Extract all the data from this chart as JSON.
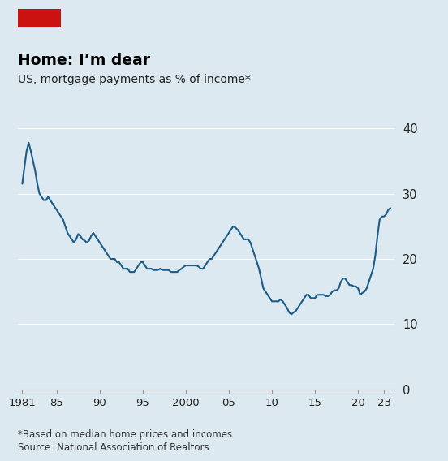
{
  "title": "Home: I’m dear",
  "subtitle": "US, mortgage payments as % of income*",
  "footnote1": "*Based on median home prices and incomes",
  "footnote2": "Source: National Association of Realtors",
  "background_color": "#dce9f0",
  "line_color": "#1b5c8a",
  "title_color": "#000000",
  "subtitle_color": "#222222",
  "footnote_color": "#333333",
  "red_rect_color": "#cc1111",
  "ylim": [
    0,
    42
  ],
  "yticks": [
    0,
    10,
    20,
    30,
    40
  ],
  "xlim": [
    1980.5,
    2024.2
  ],
  "xticks": [
    1981,
    1985,
    1990,
    1995,
    2000,
    2005,
    2010,
    2015,
    2020,
    2023
  ],
  "xticklabels": [
    "1981",
    "85",
    "90",
    "95",
    "2000",
    "05",
    "10",
    "15",
    "20",
    "23"
  ],
  "data": [
    [
      1981.0,
      31.5
    ],
    [
      1981.25,
      34.0
    ],
    [
      1981.5,
      36.5
    ],
    [
      1981.75,
      37.8
    ],
    [
      1982.0,
      36.5
    ],
    [
      1982.25,
      35.0
    ],
    [
      1982.5,
      33.5
    ],
    [
      1982.75,
      31.5
    ],
    [
      1983.0,
      30.0
    ],
    [
      1983.25,
      29.5
    ],
    [
      1983.5,
      29.0
    ],
    [
      1983.75,
      29.0
    ],
    [
      1984.0,
      29.5
    ],
    [
      1984.25,
      29.0
    ],
    [
      1984.5,
      28.5
    ],
    [
      1984.75,
      28.0
    ],
    [
      1985.0,
      27.5
    ],
    [
      1985.25,
      27.0
    ],
    [
      1985.5,
      26.5
    ],
    [
      1985.75,
      26.0
    ],
    [
      1986.0,
      25.0
    ],
    [
      1986.25,
      24.0
    ],
    [
      1986.5,
      23.5
    ],
    [
      1986.75,
      23.0
    ],
    [
      1987.0,
      22.5
    ],
    [
      1987.25,
      23.0
    ],
    [
      1987.5,
      23.8
    ],
    [
      1987.75,
      23.5
    ],
    [
      1988.0,
      23.0
    ],
    [
      1988.25,
      22.8
    ],
    [
      1988.5,
      22.5
    ],
    [
      1988.75,
      22.8
    ],
    [
      1989.0,
      23.5
    ],
    [
      1989.25,
      24.0
    ],
    [
      1989.5,
      23.5
    ],
    [
      1989.75,
      23.0
    ],
    [
      1990.0,
      22.5
    ],
    [
      1990.25,
      22.0
    ],
    [
      1990.5,
      21.5
    ],
    [
      1990.75,
      21.0
    ],
    [
      1991.0,
      20.5
    ],
    [
      1991.25,
      20.0
    ],
    [
      1991.5,
      20.0
    ],
    [
      1991.75,
      20.0
    ],
    [
      1992.0,
      19.5
    ],
    [
      1992.25,
      19.5
    ],
    [
      1992.5,
      19.0
    ],
    [
      1992.75,
      18.5
    ],
    [
      1993.0,
      18.5
    ],
    [
      1993.25,
      18.5
    ],
    [
      1993.5,
      18.0
    ],
    [
      1993.75,
      18.0
    ],
    [
      1994.0,
      18.0
    ],
    [
      1994.25,
      18.5
    ],
    [
      1994.5,
      19.0
    ],
    [
      1994.75,
      19.5
    ],
    [
      1995.0,
      19.5
    ],
    [
      1995.25,
      19.0
    ],
    [
      1995.5,
      18.5
    ],
    [
      1995.75,
      18.5
    ],
    [
      1996.0,
      18.5
    ],
    [
      1996.25,
      18.3
    ],
    [
      1996.5,
      18.3
    ],
    [
      1996.75,
      18.3
    ],
    [
      1997.0,
      18.5
    ],
    [
      1997.25,
      18.3
    ],
    [
      1997.5,
      18.3
    ],
    [
      1997.75,
      18.3
    ],
    [
      1998.0,
      18.3
    ],
    [
      1998.25,
      18.0
    ],
    [
      1998.5,
      18.0
    ],
    [
      1998.75,
      18.0
    ],
    [
      1999.0,
      18.0
    ],
    [
      1999.25,
      18.3
    ],
    [
      1999.5,
      18.5
    ],
    [
      1999.75,
      18.8
    ],
    [
      2000.0,
      19.0
    ],
    [
      2000.25,
      19.0
    ],
    [
      2000.5,
      19.0
    ],
    [
      2000.75,
      19.0
    ],
    [
      2001.0,
      19.0
    ],
    [
      2001.25,
      19.0
    ],
    [
      2001.5,
      18.8
    ],
    [
      2001.75,
      18.5
    ],
    [
      2002.0,
      18.5
    ],
    [
      2002.25,
      19.0
    ],
    [
      2002.5,
      19.5
    ],
    [
      2002.75,
      20.0
    ],
    [
      2003.0,
      20.0
    ],
    [
      2003.25,
      20.5
    ],
    [
      2003.5,
      21.0
    ],
    [
      2003.75,
      21.5
    ],
    [
      2004.0,
      22.0
    ],
    [
      2004.25,
      22.5
    ],
    [
      2004.5,
      23.0
    ],
    [
      2004.75,
      23.5
    ],
    [
      2005.0,
      24.0
    ],
    [
      2005.25,
      24.5
    ],
    [
      2005.5,
      25.0
    ],
    [
      2005.75,
      24.8
    ],
    [
      2006.0,
      24.5
    ],
    [
      2006.25,
      24.0
    ],
    [
      2006.5,
      23.5
    ],
    [
      2006.75,
      23.0
    ],
    [
      2007.0,
      23.0
    ],
    [
      2007.25,
      23.0
    ],
    [
      2007.5,
      22.5
    ],
    [
      2007.75,
      21.5
    ],
    [
      2008.0,
      20.5
    ],
    [
      2008.25,
      19.5
    ],
    [
      2008.5,
      18.5
    ],
    [
      2008.75,
      17.0
    ],
    [
      2009.0,
      15.5
    ],
    [
      2009.25,
      15.0
    ],
    [
      2009.5,
      14.5
    ],
    [
      2009.75,
      14.0
    ],
    [
      2010.0,
      13.5
    ],
    [
      2010.25,
      13.5
    ],
    [
      2010.5,
      13.5
    ],
    [
      2010.75,
      13.5
    ],
    [
      2011.0,
      13.8
    ],
    [
      2011.25,
      13.5
    ],
    [
      2011.5,
      13.0
    ],
    [
      2011.75,
      12.5
    ],
    [
      2012.0,
      11.8
    ],
    [
      2012.25,
      11.5
    ],
    [
      2012.5,
      11.8
    ],
    [
      2012.75,
      12.0
    ],
    [
      2013.0,
      12.5
    ],
    [
      2013.25,
      13.0
    ],
    [
      2013.5,
      13.5
    ],
    [
      2013.75,
      14.0
    ],
    [
      2014.0,
      14.5
    ],
    [
      2014.25,
      14.5
    ],
    [
      2014.5,
      14.0
    ],
    [
      2014.75,
      14.0
    ],
    [
      2015.0,
      14.0
    ],
    [
      2015.25,
      14.5
    ],
    [
      2015.5,
      14.5
    ],
    [
      2015.75,
      14.5
    ],
    [
      2016.0,
      14.5
    ],
    [
      2016.25,
      14.3
    ],
    [
      2016.5,
      14.3
    ],
    [
      2016.75,
      14.5
    ],
    [
      2017.0,
      15.0
    ],
    [
      2017.25,
      15.2
    ],
    [
      2017.5,
      15.2
    ],
    [
      2017.75,
      15.5
    ],
    [
      2018.0,
      16.5
    ],
    [
      2018.25,
      17.0
    ],
    [
      2018.5,
      17.0
    ],
    [
      2018.75,
      16.5
    ],
    [
      2019.0,
      16.0
    ],
    [
      2019.25,
      16.0
    ],
    [
      2019.5,
      15.8
    ],
    [
      2019.75,
      15.8
    ],
    [
      2020.0,
      15.5
    ],
    [
      2020.25,
      14.5
    ],
    [
      2020.5,
      14.8
    ],
    [
      2020.75,
      15.0
    ],
    [
      2021.0,
      15.5
    ],
    [
      2021.25,
      16.5
    ],
    [
      2021.5,
      17.5
    ],
    [
      2021.75,
      18.5
    ],
    [
      2022.0,
      20.5
    ],
    [
      2022.25,
      23.5
    ],
    [
      2022.5,
      26.0
    ],
    [
      2022.75,
      26.5
    ],
    [
      2023.0,
      26.5
    ],
    [
      2023.25,
      26.8
    ],
    [
      2023.5,
      27.5
    ],
    [
      2023.75,
      27.8
    ]
  ]
}
